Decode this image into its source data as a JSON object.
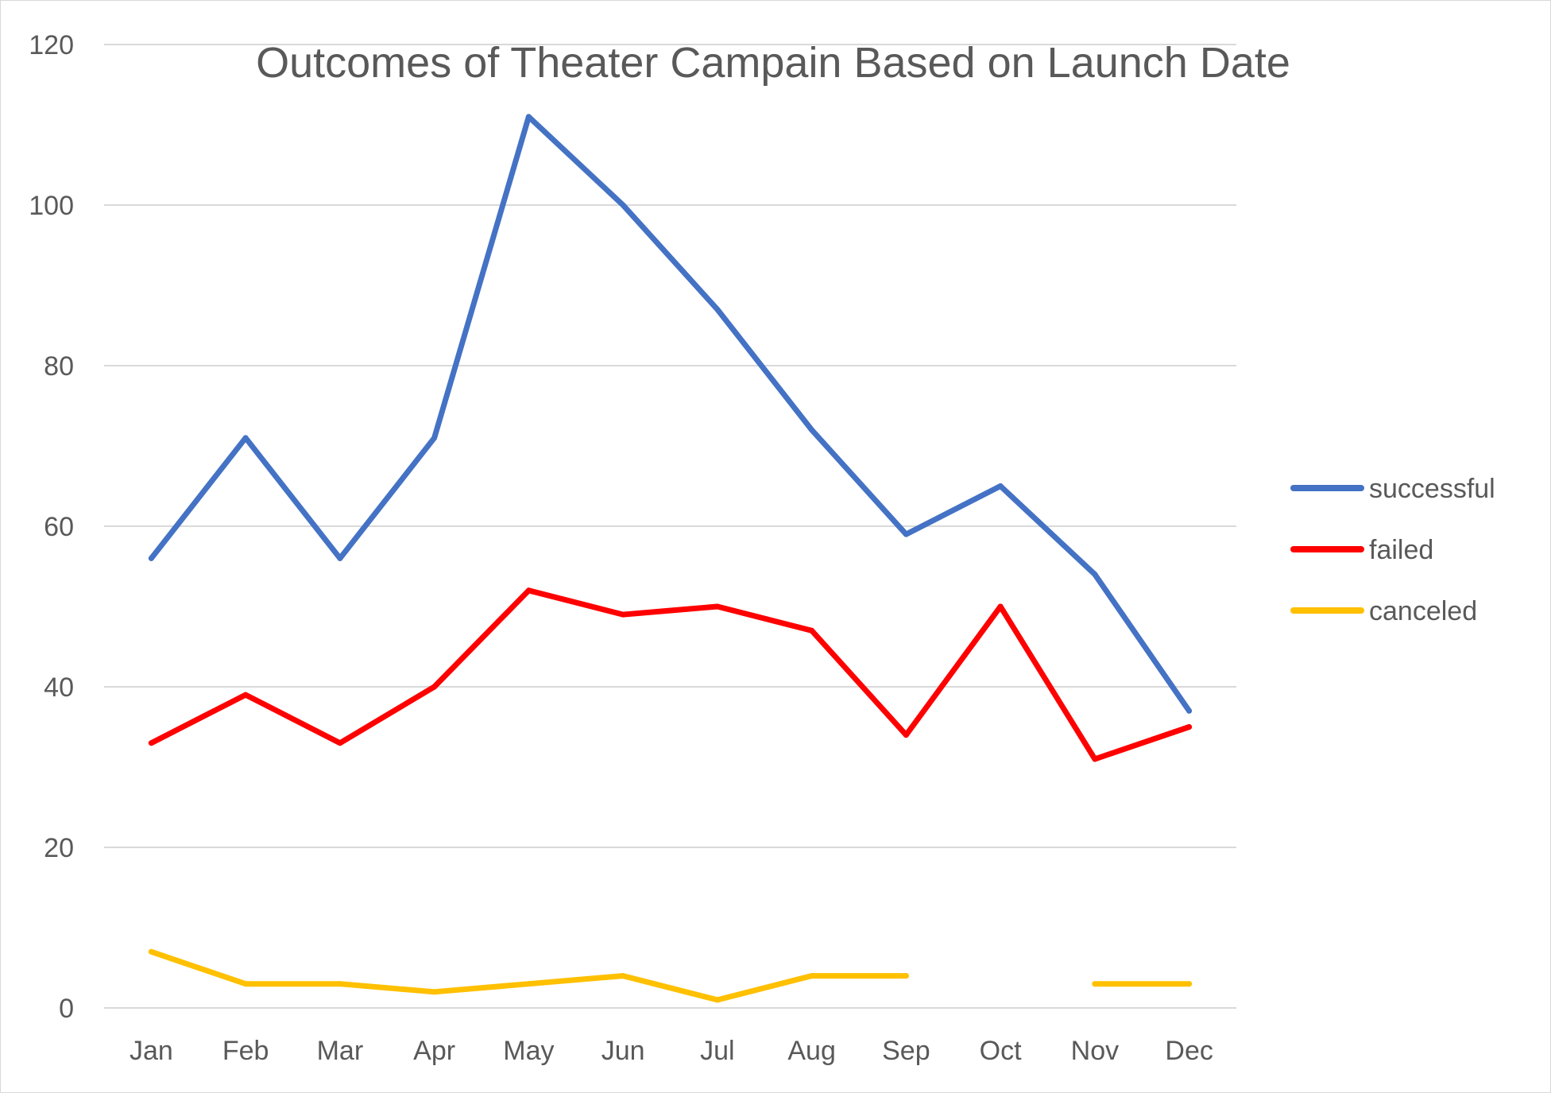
{
  "chart_data": {
    "type": "line",
    "title": "Outcomes of Theater Campain Based on Launch Date",
    "xlabel": "",
    "ylabel": "",
    "categories": [
      "Jan",
      "Feb",
      "Mar",
      "Apr",
      "May",
      "Jun",
      "Jul",
      "Aug",
      "Sep",
      "Oct",
      "Nov",
      "Dec"
    ],
    "ylim": [
      0,
      120
    ],
    "yticks": [
      "0",
      "20",
      "40",
      "60",
      "80",
      "100",
      "120"
    ],
    "grid": true,
    "legend_position": "right",
    "series": [
      {
        "name": "successful",
        "color": "#4472c4",
        "values": [
          56,
          71,
          56,
          71,
          111,
          100,
          87,
          72,
          59,
          65,
          54,
          37
        ]
      },
      {
        "name": "failed",
        "color": "#ff0000",
        "values": [
          33,
          39,
          33,
          40,
          52,
          49,
          50,
          47,
          34,
          50,
          31,
          35
        ]
      },
      {
        "name": "canceled",
        "color": "#ffc000",
        "values": [
          7,
          3,
          3,
          2,
          3,
          4,
          1,
          4,
          4,
          null,
          3,
          3
        ]
      }
    ]
  }
}
